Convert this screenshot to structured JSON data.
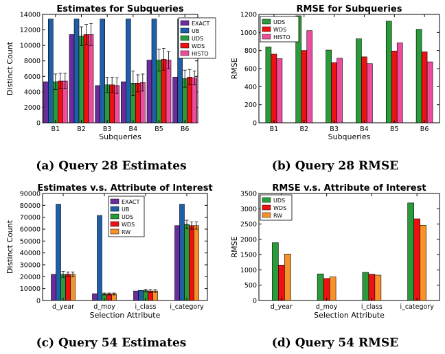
{
  "colors": {
    "EXACT": "#6b2d9e",
    "UB": "#1f5fa8",
    "UDS": "#2a9a3a",
    "WDS": "#ee1111",
    "HISTO": "#ee4c9c",
    "RW": "#f7922a"
  },
  "chart_data": [
    {
      "type": "bar",
      "title": "Estimates for Subqueries",
      "xlabel": "Subqueries",
      "ylabel": "Distinct Count",
      "categories": [
        "B1",
        "B2",
        "B3",
        "B4",
        "B5",
        "B6"
      ],
      "ylim": [
        0,
        14000
      ],
      "yticks": [
        0,
        2000,
        4000,
        6000,
        8000,
        10000,
        12000,
        14000
      ],
      "legend_position": "top-right",
      "series": [
        {
          "name": "EXACT",
          "values": [
            5300,
            11400,
            4800,
            5300,
            8100,
            5900
          ]
        },
        {
          "name": "UB",
          "values": [
            13400,
            13400,
            13400,
            13400,
            13400,
            13400
          ]
        },
        {
          "name": "UDS",
          "values": [
            5300,
            11200,
            4900,
            5100,
            8100,
            5700
          ]
        },
        {
          "name": "WDS",
          "values": [
            5400,
            11400,
            4900,
            5100,
            8200,
            5900
          ]
        },
        {
          "name": "HISTO",
          "values": [
            5400,
            11400,
            4800,
            5200,
            8100,
            5800
          ]
        }
      ],
      "error_bars": {
        "UDS": [
          1000,
          1200,
          1000,
          1600,
          1400,
          1100
        ],
        "WDS": [
          1000,
          1300,
          1000,
          1100,
          1400,
          1000
        ],
        "HISTO": [
          1000,
          1400,
          1000,
          1100,
          1100,
          900
        ]
      },
      "caption": "(a) Query 28 Estimates"
    },
    {
      "type": "bar",
      "title": "RMSE for Subqueries",
      "xlabel": "Subqueries",
      "ylabel": "RMSE",
      "categories": [
        "B1",
        "B2",
        "B3",
        "B4",
        "B5",
        "B6"
      ],
      "ylim": [
        0,
        1200
      ],
      "yticks": [
        0,
        200,
        400,
        600,
        800,
        1000,
        1200
      ],
      "legend_position": "top-left",
      "series": [
        {
          "name": "UDS",
          "values": [
            840,
            1185,
            805,
            930,
            1125,
            1035
          ]
        },
        {
          "name": "WDS",
          "values": [
            760,
            800,
            665,
            730,
            795,
            785
          ]
        },
        {
          "name": "HISTO",
          "values": [
            710,
            1020,
            715,
            655,
            885,
            675
          ]
        }
      ],
      "caption": "(b) Query 28 RMSE"
    },
    {
      "type": "bar",
      "title": "Estimates v.s. Attribute of Interest",
      "xlabel": "Selection Attribute",
      "ylabel": "Distinct Count",
      "categories": [
        "d_year",
        "d_moy",
        "i_class",
        "i_category"
      ],
      "ylim": [
        0,
        90000
      ],
      "yticks": [
        0,
        10000,
        20000,
        30000,
        40000,
        50000,
        60000,
        70000,
        80000,
        90000
      ],
      "legend_position": "top-center",
      "series": [
        {
          "name": "EXACT",
          "values": [
            22000,
            5700,
            8000,
            63000
          ]
        },
        {
          "name": "UB",
          "values": [
            81000,
            71500,
            8500,
            81000
          ]
        },
        {
          "name": "UDS",
          "values": [
            22000,
            5500,
            8300,
            64000
          ]
        },
        {
          "name": "WDS",
          "values": [
            22000,
            5500,
            8000,
            63000
          ]
        },
        {
          "name": "RW",
          "values": [
            22000,
            5500,
            8000,
            63000
          ]
        }
      ],
      "error_bars": {
        "UDS": [
          2500,
          800,
          1200,
          3500
        ],
        "WDS": [
          2000,
          800,
          1200,
          3000
        ],
        "RW": [
          2000,
          800,
          1100,
          3000
        ]
      },
      "caption": "(c) Query 54 Estimates"
    },
    {
      "type": "bar",
      "title": "RMSE v.s. Attribute of Interest",
      "xlabel": "Selection Attribute",
      "ylabel": "RMSE",
      "categories": [
        "d_year",
        "d_moy",
        "i_class",
        "i_category"
      ],
      "ylim": [
        0,
        3500
      ],
      "yticks": [
        0,
        500,
        1000,
        1500,
        2000,
        2500,
        3000,
        3500
      ],
      "legend_position": "top-left",
      "series": [
        {
          "name": "UDS",
          "values": [
            1890,
            870,
            920,
            3190
          ]
        },
        {
          "name": "WDS",
          "values": [
            1160,
            720,
            860,
            2670
          ]
        },
        {
          "name": "RW",
          "values": [
            1520,
            770,
            830,
            2460
          ]
        }
      ],
      "caption": "(d) Query 54 RMSE"
    }
  ]
}
